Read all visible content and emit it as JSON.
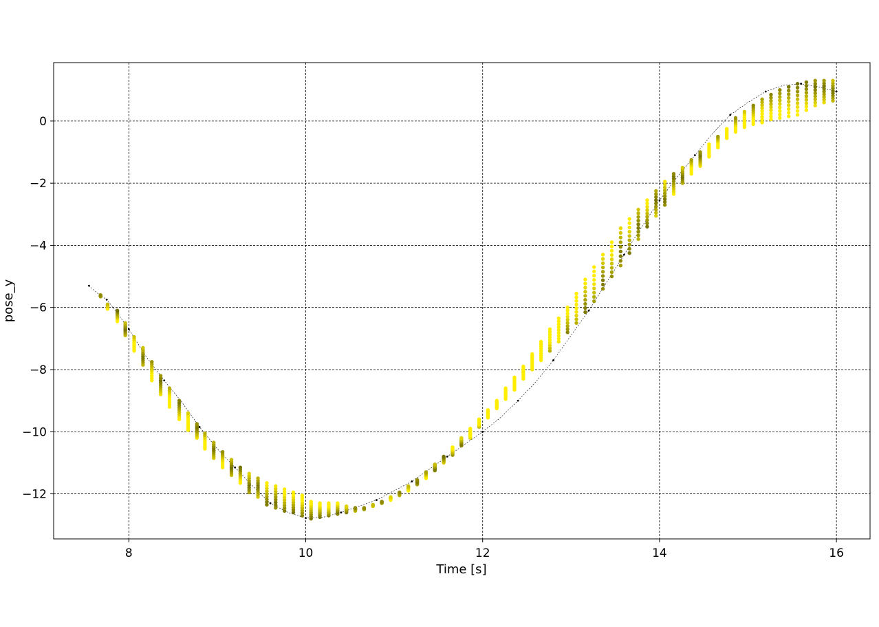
{
  "chart_data": {
    "type": "scatter",
    "title": "",
    "xlabel": "Time [s]",
    "ylabel": "pose_y",
    "xlim": [
      7.15,
      16.38
    ],
    "ylim": [
      -13.45,
      1.88
    ],
    "xticks": [
      8,
      10,
      12,
      14,
      16
    ],
    "xtick_labels": [
      "8",
      "10",
      "12",
      "14",
      "16"
    ],
    "yticks": [
      0,
      -2,
      -4,
      -6,
      -8,
      -10,
      -12
    ],
    "ytick_labels": [
      "0",
      "−2",
      "−4",
      "−6",
      "−8",
      "−10",
      "−12"
    ],
    "grid": true,
    "legend": "none",
    "colors": {
      "reference_line": "#000000",
      "point_dark": "#5c5c00",
      "point_light": "#ffee00"
    },
    "reference_series": {
      "x": [
        7.55,
        7.65,
        7.75,
        7.85,
        8.0,
        8.2,
        8.4,
        8.6,
        8.8,
        9.0,
        9.2,
        9.4,
        9.6,
        9.8,
        10.0,
        10.2,
        10.4,
        10.6,
        10.8,
        11.0,
        11.2,
        11.4,
        11.6,
        11.8,
        12.0,
        12.2,
        12.4,
        12.6,
        12.8,
        13.0,
        13.2,
        13.4,
        13.6,
        13.8,
        14.0,
        14.2,
        14.4,
        14.6,
        14.8,
        15.0,
        15.2,
        15.4,
        15.6,
        15.8,
        16.0
      ],
      "y": [
        -5.3,
        -5.55,
        -5.75,
        -6.1,
        -6.7,
        -7.6,
        -8.35,
        -9.05,
        -9.85,
        -10.55,
        -11.15,
        -11.75,
        -12.3,
        -12.6,
        -12.78,
        -12.75,
        -12.6,
        -12.4,
        -12.2,
        -11.9,
        -11.6,
        -11.2,
        -10.8,
        -10.4,
        -10.0,
        -9.55,
        -9.0,
        -8.4,
        -7.7,
        -6.9,
        -6.1,
        -5.2,
        -4.3,
        -3.4,
        -2.55,
        -1.8,
        -1.1,
        -0.4,
        0.2,
        0.6,
        0.95,
        1.15,
        1.2,
        1.1,
        0.95
      ]
    },
    "scatter_series": {
      "x": [
        7.68,
        7.76,
        7.87,
        7.96,
        8.06,
        8.16,
        8.26,
        8.36,
        8.46,
        8.57,
        8.67,
        8.77,
        8.86,
        8.96,
        9.06,
        9.16,
        9.26,
        9.36,
        9.46,
        9.56,
        9.66,
        9.76,
        9.86,
        9.96,
        10.06,
        10.16,
        10.26,
        10.36,
        10.46,
        10.56,
        10.66,
        10.76,
        10.86,
        10.96,
        11.06,
        11.16,
        11.26,
        11.36,
        11.46,
        11.56,
        11.66,
        11.76,
        11.86,
        11.96,
        12.06,
        12.16,
        12.26,
        12.36,
        12.46,
        12.56,
        12.66,
        12.76,
        12.86,
        12.96,
        13.06,
        13.16,
        13.26,
        13.36,
        13.46,
        13.56,
        13.66,
        13.76,
        13.86,
        13.96,
        14.06,
        14.16,
        14.26,
        14.36,
        14.46,
        14.56,
        14.66,
        14.76,
        14.86,
        14.96,
        15.06,
        15.16,
        15.26,
        15.36,
        15.46,
        15.56,
        15.66,
        15.76,
        15.86,
        15.96
      ],
      "y_top": [
        -5.6,
        -5.9,
        -6.1,
        -6.5,
        -6.95,
        -7.3,
        -7.75,
        -8.2,
        -8.6,
        -9.0,
        -9.4,
        -9.75,
        -10.05,
        -10.35,
        -10.65,
        -10.9,
        -11.15,
        -11.35,
        -11.5,
        -11.65,
        -11.75,
        -11.85,
        -11.95,
        -12.05,
        -12.25,
        -12.3,
        -12.3,
        -12.3,
        -12.4,
        -12.45,
        -12.45,
        -12.35,
        -12.25,
        -12.1,
        -11.95,
        -11.75,
        -11.55,
        -11.3,
        -11.05,
        -10.8,
        -10.5,
        -10.2,
        -9.9,
        -9.6,
        -9.3,
        -9.0,
        -8.6,
        -8.25,
        -7.9,
        -7.5,
        -7.1,
        -6.7,
        -6.35,
        -6.0,
        -5.55,
        -5.1,
        -4.7,
        -4.3,
        -3.9,
        -3.45,
        -3.15,
        -2.85,
        -2.55,
        -2.25,
        -1.95,
        -1.7,
        -1.5,
        -1.25,
        -1.0,
        -0.75,
        -0.5,
        -0.25,
        0.1,
        0.3,
        0.5,
        0.7,
        0.85,
        1.0,
        1.1,
        1.2,
        1.25,
        1.3,
        1.3,
        1.3
      ],
      "y_bottom": [
        -5.65,
        -6.05,
        -6.45,
        -6.9,
        -7.4,
        -7.85,
        -8.35,
        -8.8,
        -9.2,
        -9.6,
        -9.95,
        -10.2,
        -10.55,
        -10.85,
        -11.15,
        -11.4,
        -11.65,
        -11.95,
        -12.1,
        -12.35,
        -12.45,
        -12.55,
        -12.6,
        -12.7,
        -12.8,
        -12.75,
        -12.7,
        -12.65,
        -12.6,
        -12.55,
        -12.5,
        -12.4,
        -12.3,
        -12.2,
        -12.05,
        -11.9,
        -11.7,
        -11.5,
        -11.25,
        -11.0,
        -10.75,
        -10.45,
        -10.2,
        -9.85,
        -9.55,
        -9.25,
        -8.95,
        -8.65,
        -8.3,
        -8.0,
        -7.7,
        -7.4,
        -7.1,
        -6.8,
        -6.5,
        -6.15,
        -5.8,
        -5.4,
        -5.0,
        -4.65,
        -4.25,
        -3.8,
        -3.4,
        -3.05,
        -2.7,
        -2.35,
        -2.0,
        -1.7,
        -1.45,
        -1.15,
        -0.85,
        -0.55,
        -0.35,
        -0.2,
        -0.1,
        -0.05,
        0.05,
        0.1,
        0.15,
        0.2,
        0.35,
        0.5,
        0.6,
        0.65
      ]
    }
  }
}
